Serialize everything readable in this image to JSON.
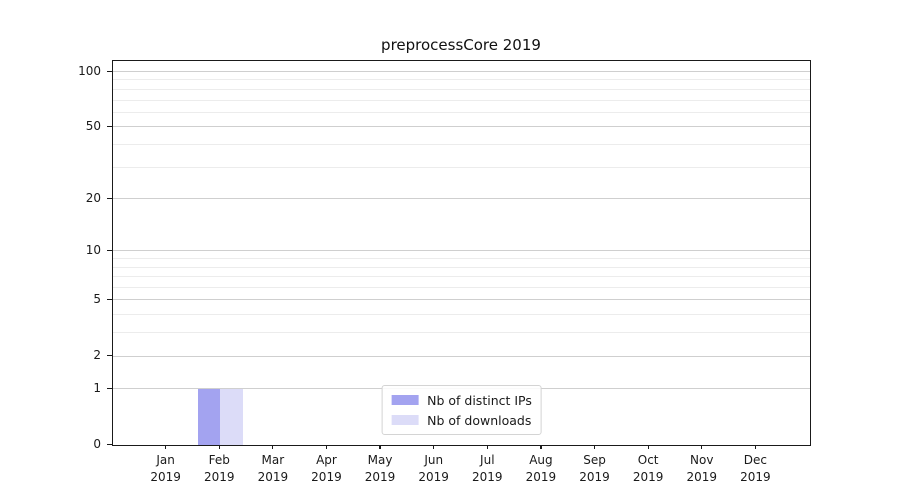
{
  "chart_data": {
    "type": "bar",
    "title": "preprocessCore 2019",
    "categories": [
      "Jan 2019",
      "Feb 2019",
      "Mar 2019",
      "Apr 2019",
      "May 2019",
      "Jun 2019",
      "Jul 2019",
      "Aug 2019",
      "Sep 2019",
      "Oct 2019",
      "Nov 2019",
      "Dec 2019"
    ],
    "x_tick_months": [
      "Jan",
      "Feb",
      "Mar",
      "Apr",
      "May",
      "Jun",
      "Jul",
      "Aug",
      "Sep",
      "Oct",
      "Nov",
      "Dec"
    ],
    "x_tick_year": "2019",
    "series": [
      {
        "name": "Nb of distinct IPs",
        "color": "#a3a3f0",
        "values": [
          0,
          1,
          0,
          0,
          0,
          0,
          0,
          0,
          0,
          0,
          0,
          0
        ]
      },
      {
        "name": "Nb of downloads",
        "color": "#dcdcf8",
        "values": [
          0,
          1,
          0,
          0,
          0,
          0,
          0,
          0,
          0,
          0,
          0,
          0
        ]
      }
    ],
    "y_axis": {
      "scale": "log1p",
      "ticks": [
        0,
        1,
        2,
        5,
        10,
        20,
        50,
        100
      ],
      "minor_gridlines": [
        3,
        4,
        6,
        7,
        8,
        9,
        30,
        40,
        60,
        70,
        80,
        90
      ],
      "top_value": 114,
      "ylim": [
        0,
        114
      ]
    },
    "grid": "both",
    "legend_position": "lower center",
    "colors": {
      "spine": "#1a1a1a",
      "major_grid": "#cfcfcf",
      "minor_grid": "#ececec",
      "text": "#1a1a1a"
    }
  }
}
